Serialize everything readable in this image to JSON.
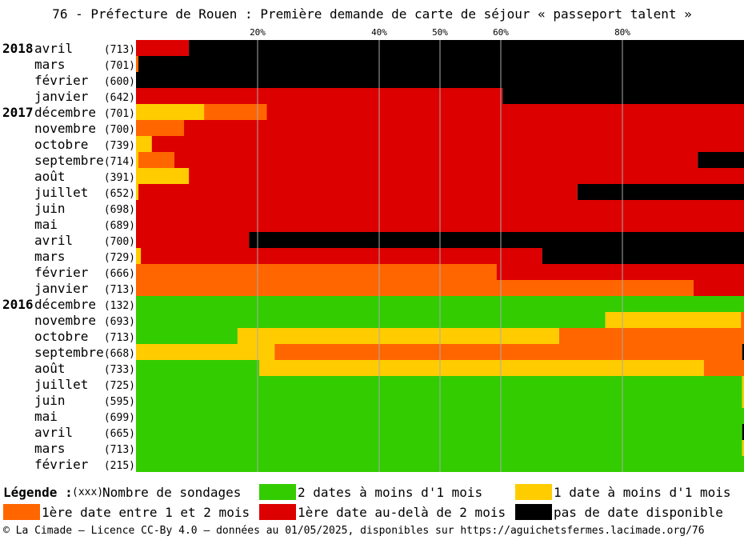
{
  "title": "76 - Préfecture de Rouen : Première demande de carte de séjour « passeport talent »",
  "colors": {
    "green": "#33cc00",
    "yellow": "#ffcc00",
    "orange": "#ff6600",
    "red": "#dd0000",
    "black": "#000000",
    "grid": "#aaaaaa"
  },
  "legend": {
    "title": "Légende :",
    "count_symbol": "(xxx)",
    "count_label": "Nombre de sondages",
    "items": [
      {
        "key": "green",
        "label": "2 dates à moins d'1 mois"
      },
      {
        "key": "yellow",
        "label": "1 date à moins d'1 mois"
      },
      {
        "key": "orange",
        "label": "1ère date entre 1 et 2 mois"
      },
      {
        "key": "red",
        "label": "1ère date au-delà de 2 mois"
      },
      {
        "key": "black",
        "label": "pas de date disponible"
      }
    ]
  },
  "footer": "© La Cimade – Licence CC-By 4.0 – données au 01/05/2025, disponibles sur https://aguichetsfermes.lacimade.org/76",
  "chart_data": {
    "type": "bar",
    "orientation": "horizontal-stacked-100",
    "title": "76 - Préfecture de Rouen : Première demande de carte de séjour « passeport talent »",
    "x_ticks": [
      20,
      40,
      50,
      60,
      80
    ],
    "x_tick_labels": [
      "20%",
      "40%",
      "50%",
      "60%",
      "80%"
    ],
    "xlim": [
      0,
      100
    ],
    "grid": true,
    "legend_position": "bottom",
    "series_order": [
      "green",
      "yellow",
      "orange",
      "red",
      "black"
    ],
    "rows": [
      {
        "year": "2018",
        "month": "avril",
        "count": "(713)",
        "values": {
          "green": 0,
          "yellow": 0,
          "orange": 0,
          "red": 8.7,
          "black": 91.3
        }
      },
      {
        "year": "",
        "month": "mars",
        "count": "(701)",
        "values": {
          "green": 0,
          "yellow": 0,
          "orange": 0.4,
          "red": 0,
          "black": 99.6
        }
      },
      {
        "year": "",
        "month": "février",
        "count": "(600)",
        "values": {
          "green": 0,
          "yellow": 0,
          "orange": 0,
          "red": 0,
          "black": 100
        }
      },
      {
        "year": "",
        "month": "janvier",
        "count": "(642)",
        "values": {
          "green": 0,
          "yellow": 0,
          "orange": 0,
          "red": 60.3,
          "black": 39.7
        }
      },
      {
        "year": "2017",
        "month": "décembre",
        "count": "(701)",
        "values": {
          "green": 0,
          "yellow": 11.2,
          "orange": 10.3,
          "red": 78.5,
          "black": 0
        }
      },
      {
        "year": "",
        "month": "novembre",
        "count": "(700)",
        "values": {
          "green": 0,
          "yellow": 0,
          "orange": 7.9,
          "red": 92.1,
          "black": 0
        }
      },
      {
        "year": "",
        "month": "octobre",
        "count": "(739)",
        "values": {
          "green": 0,
          "yellow": 2.6,
          "orange": 0,
          "red": 97.4,
          "black": 0
        }
      },
      {
        "year": "",
        "month": "septembre",
        "count": "(714)",
        "values": {
          "green": 0,
          "yellow": 0.4,
          "orange": 5.9,
          "red": 86.1,
          "black": 7.6
        }
      },
      {
        "year": "",
        "month": "août",
        "count": "(391)",
        "values": {
          "green": 0,
          "yellow": 8.7,
          "orange": 0,
          "red": 91.3,
          "black": 0
        }
      },
      {
        "year": "",
        "month": "juillet",
        "count": "(652)",
        "values": {
          "green": 0,
          "yellow": 0.4,
          "orange": 0,
          "red": 72.2,
          "black": 27.4
        }
      },
      {
        "year": "",
        "month": "juin",
        "count": "(698)",
        "values": {
          "green": 0,
          "yellow": 0,
          "orange": 0,
          "red": 100,
          "black": 0
        }
      },
      {
        "year": "",
        "month": "mai",
        "count": "(689)",
        "values": {
          "green": 0,
          "yellow": 0,
          "orange": 0,
          "red": 100,
          "black": 0
        }
      },
      {
        "year": "",
        "month": "avril",
        "count": "(700)",
        "values": {
          "green": 0,
          "yellow": 0,
          "orange": 0,
          "red": 18.6,
          "black": 81.4
        }
      },
      {
        "year": "",
        "month": "mars",
        "count": "(729)",
        "values": {
          "green": 0,
          "yellow": 0.8,
          "orange": 0,
          "red": 66,
          "black": 33.2
        }
      },
      {
        "year": "",
        "month": "février",
        "count": "(666)",
        "values": {
          "green": 0,
          "yellow": 0,
          "orange": 59.3,
          "red": 40.7,
          "black": 0
        }
      },
      {
        "year": "",
        "month": "janvier",
        "count": "(713)",
        "values": {
          "green": 0,
          "yellow": 0,
          "orange": 91.7,
          "red": 8.3,
          "black": 0
        }
      },
      {
        "year": "2016",
        "month": "décembre",
        "count": "(132)",
        "values": {
          "green": 100,
          "yellow": 0,
          "orange": 0,
          "red": 0,
          "black": 0
        }
      },
      {
        "year": "",
        "month": "novembre",
        "count": "(693)",
        "values": {
          "green": 77.2,
          "yellow": 22.3,
          "orange": 0.5,
          "red": 0,
          "black": 0
        }
      },
      {
        "year": "",
        "month": "octobre",
        "count": "(713)",
        "values": {
          "green": 16.7,
          "yellow": 52.9,
          "orange": 30.4,
          "red": 0,
          "black": 0
        }
      },
      {
        "year": "",
        "month": "septembre",
        "count": "(668)",
        "values": {
          "green": 0,
          "yellow": 22.8,
          "orange": 76.9,
          "red": 0,
          "black": 0.3
        }
      },
      {
        "year": "",
        "month": "août",
        "count": "(733)",
        "values": {
          "green": 20.3,
          "yellow": 73.1,
          "orange": 6.6,
          "red": 0,
          "black": 0
        }
      },
      {
        "year": "",
        "month": "juillet",
        "count": "(725)",
        "values": {
          "green": 99.7,
          "yellow": 0.3,
          "orange": 0,
          "red": 0,
          "black": 0
        }
      },
      {
        "year": "",
        "month": "juin",
        "count": "(595)",
        "values": {
          "green": 99.7,
          "yellow": 0.3,
          "orange": 0,
          "red": 0,
          "black": 0
        }
      },
      {
        "year": "",
        "month": "mai",
        "count": "(699)",
        "values": {
          "green": 100,
          "yellow": 0,
          "orange": 0,
          "red": 0,
          "black": 0
        }
      },
      {
        "year": "",
        "month": "avril",
        "count": "(665)",
        "values": {
          "green": 99.7,
          "yellow": 0,
          "orange": 0,
          "red": 0,
          "black": 0.3
        }
      },
      {
        "year": "",
        "month": "mars",
        "count": "(713)",
        "values": {
          "green": 99.7,
          "yellow": 0.3,
          "orange": 0,
          "red": 0,
          "black": 0
        }
      },
      {
        "year": "",
        "month": "février",
        "count": "(215)",
        "values": {
          "green": 100,
          "yellow": 0,
          "orange": 0,
          "red": 0,
          "black": 0
        }
      }
    ]
  }
}
